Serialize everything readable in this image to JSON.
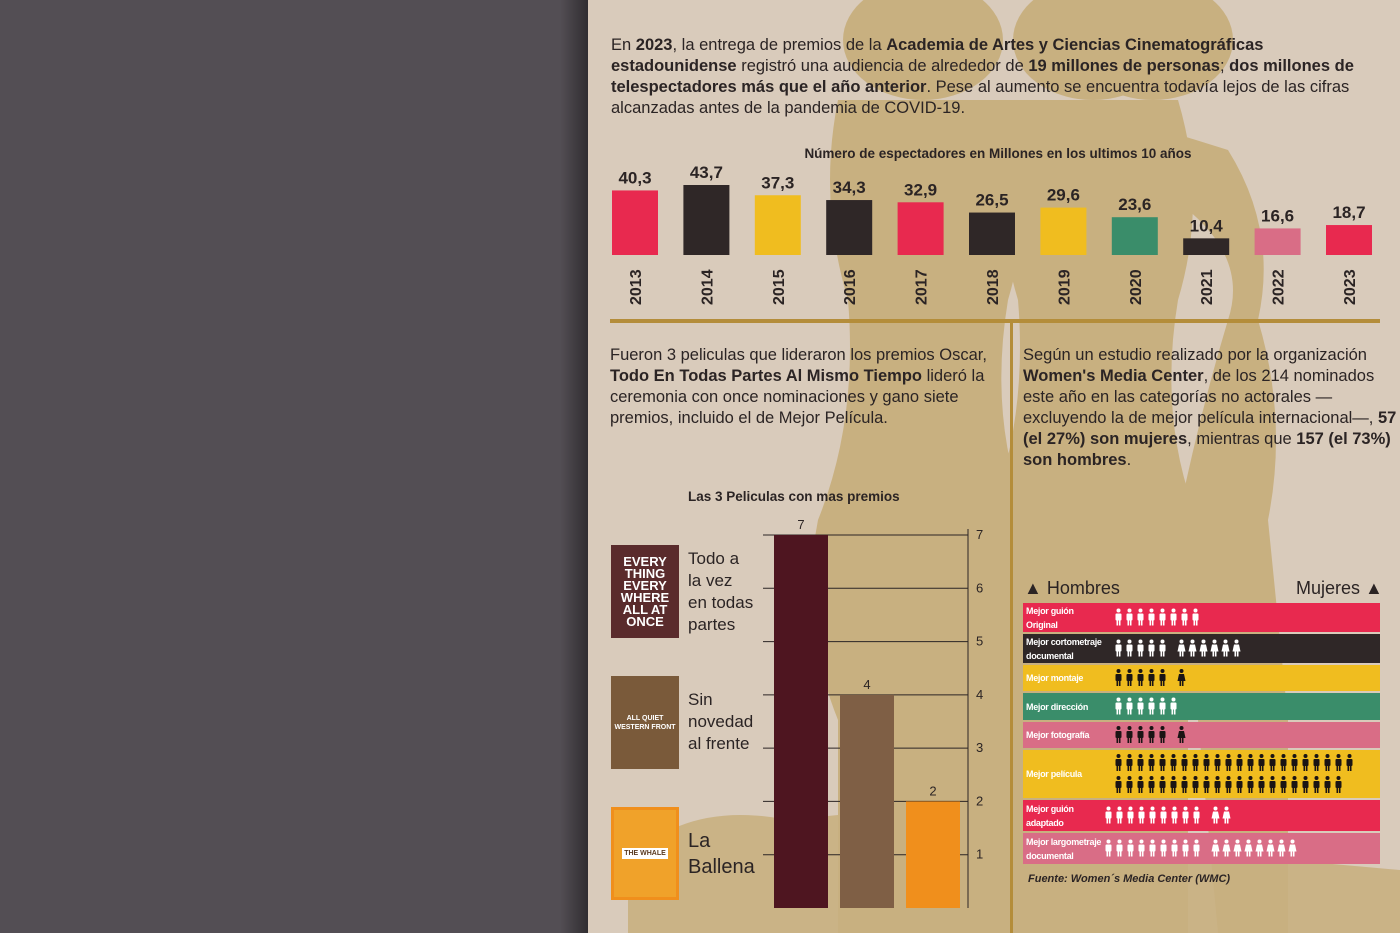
{
  "intro": {
    "p1": "En ",
    "year": "2023",
    "p2": ", la entrega de premios de la ",
    "academy": "Academia de Artes y Ciencias Cinematográficas estadounidense",
    "p3": " registró una audiencia de alrededor de ",
    "audience": "19 millones de personas",
    "p4": "; ",
    "more": "dos millones de telespectadores más que el año anterior",
    "p5": ". Pese al aumento se encuentra todavía lejos de las cifras alcanzadas antes de la pandemia de COVID-19."
  },
  "left_para": {
    "p1": "Fueron 3 peliculas que lideraron los premios Oscar, ",
    "film": "Todo En Todas Partes Al Mismo Tiempo",
    "p2": " lideró la ceremonia con once nominaciones y gano siete premios, incluido el de Mejor Película."
  },
  "right_para": {
    "p1": "Según un estudio realizado por la organización ",
    "org": "Women's Media Center",
    "p2": ", de los 214 nominados este año en las categorías no actorales —excluyendo la de mejor película internacional—, ",
    "women": "57 (el 27%) son mujeres",
    "p3": ", mientras que ",
    "men": "157 (el 73%) son hombres",
    "p4": "."
  },
  "posters": [
    {
      "label": "Todo a la vez en todas partes",
      "lines": [
        "Todo a",
        "la vez",
        "en todas",
        "partes"
      ],
      "poster_text": [
        "EVERY",
        "THING",
        "EVERY",
        "WHERE",
        "ALL AT",
        "ONCE"
      ],
      "bg": "#5a2b2c"
    },
    {
      "label": "Sin novedad al frente",
      "lines": [
        "Sin",
        "novedad",
        "al frente"
      ],
      "poster_text": [
        "ALL QUIET",
        "WESTERN FRONT"
      ],
      "bg": "#7a5a3a"
    },
    {
      "label": "La Ballena",
      "lines": [
        "La",
        "Ballena"
      ],
      "poster_text": [
        "THE WHALE"
      ],
      "bg": "#f0a22a"
    }
  ],
  "gender": {
    "legend_men": "Hombres",
    "legend_women": "Mujeres",
    "source": "Fuente: Women´s Media Center (WMC)",
    "rows": [
      {
        "label": [
          "Mejor guión",
          "Original"
        ],
        "bg": "#e8294f",
        "men": 8,
        "women": 0,
        "icon_color": "#ffffff"
      },
      {
        "label": [
          "Mejor cortometraje",
          "documental"
        ],
        "bg": "#2f2727",
        "men": 5,
        "women": 6,
        "icon_color": "#ffffff"
      },
      {
        "label": [
          "Mejor montaje"
        ],
        "bg": "#f0bd1f",
        "men": 5,
        "women": 1,
        "icon_color": "#1a1414"
      },
      {
        "label": [
          "Mejor dirección"
        ],
        "bg": "#3a8d6a",
        "men": 6,
        "women": 0,
        "icon_color": "#ffffff"
      },
      {
        "label": [
          "Mejor fotografía"
        ],
        "bg": "#d96d86",
        "men": 5,
        "women": 1,
        "icon_color": "#1a1414"
      },
      {
        "label": [
          "Mejor película"
        ],
        "bg": "#f0bd1f",
        "men": 43,
        "women": 0,
        "icon_color": "#1a1414"
      },
      {
        "label": [
          "Mejor guión",
          "adaptado"
        ],
        "bg": "#e8294f",
        "men": 9,
        "women": 2,
        "icon_color": "#ffffff"
      },
      {
        "label": [
          "Mejor largometraje",
          "documental"
        ],
        "bg": "#d96d86",
        "men": 9,
        "women": 8,
        "icon_color": "#ffffff"
      }
    ]
  },
  "chart_data": [
    {
      "type": "bar",
      "title": "Número de espectadores en Millones en los ultimos 10 años",
      "categories": [
        "2013",
        "2014",
        "2015",
        "2016",
        "2017",
        "2018",
        "2019",
        "2020",
        "2021",
        "2022",
        "2023"
      ],
      "values": [
        40.3,
        43.7,
        37.3,
        34.3,
        32.9,
        26.5,
        29.6,
        23.6,
        10.4,
        16.6,
        18.7
      ],
      "value_labels": [
        "40,3",
        "43,7",
        "37,3",
        "34,3",
        "32,9",
        "26,5",
        "29,6",
        "23,6",
        "10,4",
        "16,6",
        "18,7"
      ],
      "colors": [
        "#e8294f",
        "#2f2727",
        "#f0bd1f",
        "#2f2727",
        "#e8294f",
        "#2f2727",
        "#f0bd1f",
        "#3a8d6a",
        "#2f2727",
        "#d96d86",
        "#e8294f"
      ]
    },
    {
      "type": "bar",
      "title": "Las 3 Peliculas con mas premios",
      "categories": [
        "Todo a la vez en todas partes",
        "Sin novedad al frente",
        "La Ballena"
      ],
      "values": [
        7,
        4,
        2
      ],
      "colors": [
        "#4e1520",
        "#7f5f45",
        "#f08f1c"
      ],
      "ylim": [
        0,
        7
      ],
      "yticks": [
        "1",
        "2",
        "3",
        "4",
        "5",
        "6",
        "7"
      ]
    }
  ]
}
